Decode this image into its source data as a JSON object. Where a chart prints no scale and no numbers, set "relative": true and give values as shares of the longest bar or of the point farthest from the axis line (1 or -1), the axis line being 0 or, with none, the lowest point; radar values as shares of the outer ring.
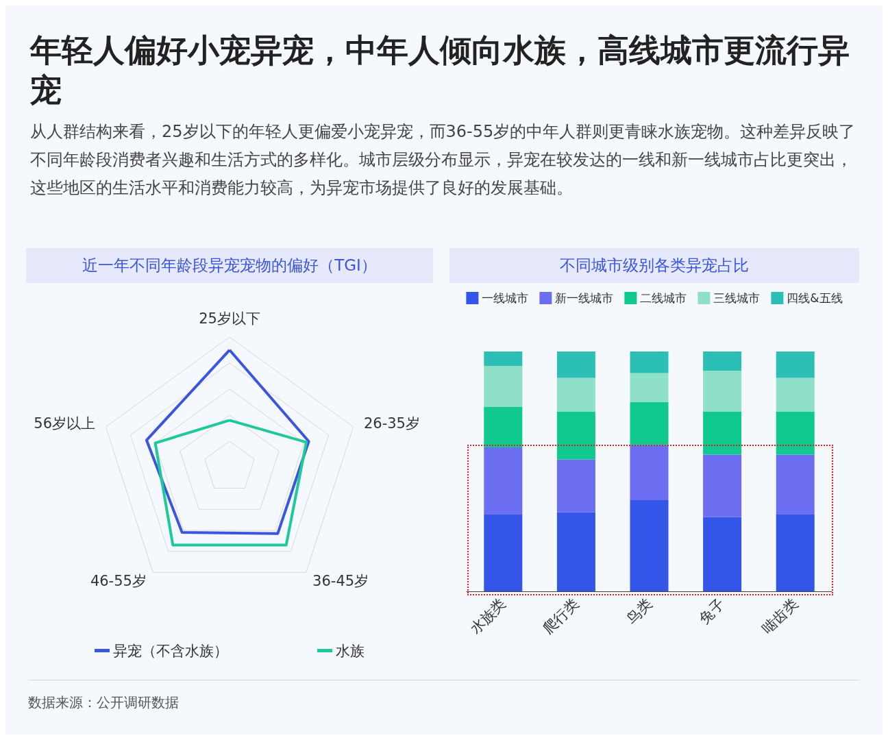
{
  "chart_data": [
    {
      "type": "radar",
      "title": "近一年不同年龄段异宠宠物的偏好（TGI）",
      "annotations": [
        "年轻人偏好小宠异宠，中年人倾向水族，高线城市更流行异宠",
        "从人群结构来看，25岁以下的年轻人更偏爱小宠异宠，而36-55岁的中年人群则更青睐水族宠物。这种差异反映了不同年龄段消费者兴趣和生活方式的多样化。城市层级分布显示，异宠在较发达的一线和新一线城市占比更突出，这些地区的生活水平和消费能力较高，为异宠市场提供了良好的发展基础。"
      ],
      "relative": true,
      "categories": [
        "25岁以下",
        "26-35岁",
        "36-45岁",
        "46-55岁",
        "56岁以上"
      ],
      "series": [
        {
          "name": "异宠（不含水族）",
          "color": "#3a55e0",
          "values": [
            0.9,
            0.64,
            0.63,
            0.62,
            0.67
          ]
        },
        {
          "name": "水族",
          "color": "#1ec99a",
          "values": [
            0.36,
            0.62,
            0.74,
            0.74,
            0.6
          ]
        }
      ],
      "legend": "bottom",
      "marker": "none",
      "line_style": "solid",
      "grid": true
    },
    {
      "type": "bar",
      "title": "不同城市级别各类异宠占比",
      "annotations": [
        "数据来源：公开调研数据"
      ],
      "relative": true,
      "stacked": true,
      "categories": [
        "水族类",
        "爬行类",
        "鸟类",
        "兔子",
        "啮齿类"
      ],
      "series": [
        {
          "name": "一线城市",
          "color": "#3355e8",
          "values": [
            0.32,
            0.33,
            0.38,
            0.31,
            0.32
          ]
        },
        {
          "name": "新一线城市",
          "color": "#6b6ef0",
          "values": [
            0.28,
            0.22,
            0.23,
            0.26,
            0.25
          ]
        },
        {
          "name": "二线城市",
          "color": "#10c98f",
          "values": [
            0.17,
            0.2,
            0.18,
            0.18,
            0.18
          ]
        },
        {
          "name": "三线城市",
          "color": "#8ee0c8",
          "values": [
            0.17,
            0.14,
            0.12,
            0.17,
            0.14
          ]
        },
        {
          "name": "四线&五线",
          "color": "#2bbfb5",
          "values": [
            0.06,
            0.11,
            0.09,
            0.08,
            0.11
          ]
        }
      ],
      "legend": "top",
      "grid": false
    }
  ]
}
